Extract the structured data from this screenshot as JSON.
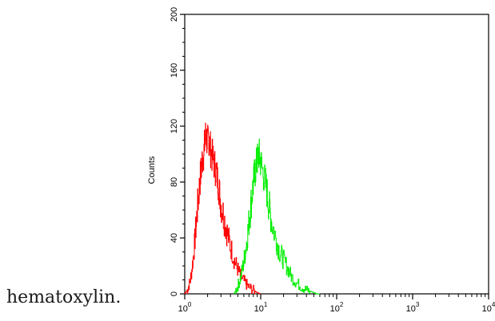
{
  "caption": "hematoxylin.",
  "chart_data": {
    "type": "line",
    "title": "",
    "xlabel": "",
    "ylabel": "Counts",
    "x_scale": "log",
    "xlim": [
      1,
      10000
    ],
    "ylim": [
      0,
      200
    ],
    "y_ticks": [
      "0",
      "40",
      "80",
      "120",
      "160",
      "200"
    ],
    "x_ticks": [
      {
        "base": "10",
        "exp": "0"
      },
      {
        "base": "10",
        "exp": "1"
      },
      {
        "base": "10",
        "exp": "2"
      },
      {
        "base": "10",
        "exp": "3"
      },
      {
        "base": "10",
        "exp": "4"
      }
    ],
    "grid": false,
    "legend": "none",
    "series": [
      {
        "color": "#ff0000",
        "x": [
          1.0,
          1.1,
          1.2,
          1.3,
          1.4,
          1.5,
          1.6,
          1.7,
          1.8,
          1.9,
          2.0,
          2.1,
          2.2,
          2.4,
          2.6,
          2.8,
          3.0,
          3.3,
          3.6,
          4.0,
          4.5,
          5.0,
          5.6,
          6.3,
          7.0,
          8.0,
          9.0,
          10.0
        ],
        "y": [
          0,
          3,
          10,
          25,
          45,
          65,
          82,
          95,
          102,
          115,
          108,
          112,
          103,
          95,
          88,
          78,
          65,
          55,
          45,
          35,
          25,
          18,
          12,
          8,
          5,
          3,
          1,
          0
        ]
      },
      {
        "color": "#00ee00",
        "x": [
          4.5,
          5.0,
          5.5,
          6.0,
          6.5,
          7.0,
          7.5,
          8.0,
          8.5,
          9.0,
          9.5,
          10.0,
          11.0,
          12.0,
          13.0,
          14.0,
          16.0,
          18.0,
          20.0,
          23.0,
          26.0,
          30.0,
          35.0,
          40.0,
          45.0,
          50.0,
          55.0,
          60.0
        ],
        "y": [
          0,
          5,
          12,
          22,
          35,
          50,
          65,
          78,
          88,
          95,
          100,
          95,
          85,
          75,
          62,
          52,
          40,
          30,
          25,
          18,
          12,
          8,
          5,
          3,
          2,
          1,
          0,
          0
        ]
      }
    ]
  },
  "colors": {
    "red_series": "#ff0000",
    "green_series": "#00ee00",
    "axis": "#000000"
  }
}
